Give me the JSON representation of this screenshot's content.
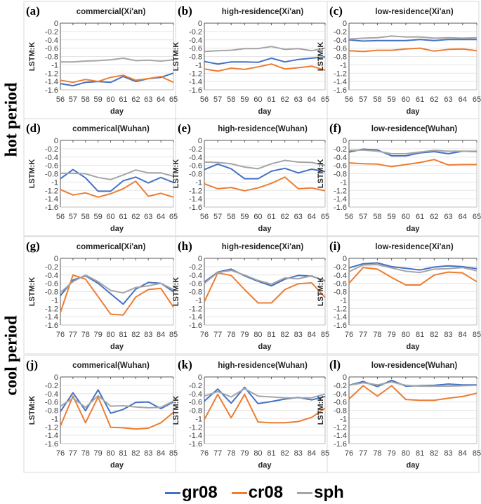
{
  "side_labels": {
    "hot": "hot period",
    "cool": "cool period"
  },
  "legend": [
    {
      "name": "gr08",
      "color": "#4472C4"
    },
    {
      "name": "cr08",
      "color": "#ED7D31"
    },
    {
      "name": "sph",
      "color": "#A5A5A5"
    }
  ],
  "chart_data": [
    {
      "type": "line",
      "panel": "(a)",
      "title": "commercial(Xi'an)",
      "xlabel": "day",
      "ylabel": "LSTM:K",
      "ylim": [
        -1.6,
        0
      ],
      "yticks": [
        "0",
        "-0.2",
        "-0.4",
        "-0.6",
        "-0.8",
        "-1",
        "-1.2",
        "-1.4",
        "-1.6"
      ],
      "x": [
        56,
        57,
        58,
        59,
        60,
        61,
        62,
        63,
        64,
        65
      ],
      "series": [
        {
          "name": "gr08",
          "values": [
            -1.45,
            -1.5,
            -1.42,
            -1.4,
            -1.42,
            -1.28,
            -1.4,
            -1.33,
            -1.3,
            -1.2
          ]
        },
        {
          "name": "cr08",
          "values": [
            -1.37,
            -1.42,
            -1.35,
            -1.4,
            -1.3,
            -1.25,
            -1.37,
            -1.33,
            -1.28,
            -1.42
          ]
        },
        {
          "name": "sph",
          "values": [
            -0.93,
            -0.93,
            -0.91,
            -0.9,
            -0.88,
            -0.84,
            -0.9,
            -0.89,
            -0.91,
            -0.88
          ]
        }
      ]
    },
    {
      "type": "line",
      "panel": "(b)",
      "title": "high-residence(Xi'an)",
      "xlabel": "day",
      "ylabel": "LSTM:K",
      "ylim": [
        -1.6,
        0
      ],
      "yticks": [
        "0",
        "-0.2",
        "-0.4",
        "-0.6",
        "-0.8",
        "-1",
        "-1.2",
        "-1.4",
        "-1.6"
      ],
      "x": [
        56,
        57,
        58,
        59,
        60,
        61,
        62,
        63,
        64,
        65
      ],
      "series": [
        {
          "name": "gr08",
          "values": [
            -0.92,
            -0.98,
            -0.93,
            -0.93,
            -0.94,
            -0.84,
            -0.93,
            -0.87,
            -0.84,
            -0.81
          ]
        },
        {
          "name": "cr08",
          "values": [
            -1.1,
            -1.15,
            -1.08,
            -1.11,
            -1.05,
            -0.98,
            -1.1,
            -1.07,
            -1.03,
            -1.13
          ]
        },
        {
          "name": "sph",
          "values": [
            -0.68,
            -0.66,
            -0.65,
            -0.61,
            -0.61,
            -0.56,
            -0.63,
            -0.61,
            -0.66,
            -0.6
          ]
        }
      ]
    },
    {
      "type": "line",
      "panel": "(c)",
      "title": "low-residence(Xi'an)",
      "xlabel": "day",
      "ylabel": "LSTM:K",
      "ylim": [
        -1.6,
        0
      ],
      "yticks": [
        "0",
        "-0.2",
        "-0.4",
        "-0.6",
        "-0.8",
        "-1",
        "-1.2",
        "-1.4",
        "-1.6"
      ],
      "x": [
        56,
        57,
        58,
        59,
        60,
        61,
        62,
        63,
        64,
        65
      ],
      "series": [
        {
          "name": "gr08",
          "values": [
            -0.4,
            -0.43,
            -0.42,
            -0.42,
            -0.42,
            -0.39,
            -0.42,
            -0.39,
            -0.39,
            -0.39
          ]
        },
        {
          "name": "cr08",
          "values": [
            -0.66,
            -0.68,
            -0.65,
            -0.65,
            -0.62,
            -0.6,
            -0.67,
            -0.63,
            -0.62,
            -0.66
          ]
        },
        {
          "name": "sph",
          "values": [
            -0.38,
            -0.36,
            -0.35,
            -0.31,
            -0.33,
            -0.33,
            -0.36,
            -0.35,
            -0.36,
            -0.35
          ]
        }
      ]
    },
    {
      "type": "line",
      "panel": "(d)",
      "title": "commerical(Wuhan)",
      "xlabel": "day",
      "ylabel": "LSTM:K",
      "ylim": [
        -1.6,
        0
      ],
      "yticks": [
        "0",
        "-0.2",
        "-0.4",
        "-0.6",
        "-0.8",
        "-1",
        "-1.2",
        "-1.4",
        "-1.6"
      ],
      "x": [
        56,
        57,
        58,
        59,
        60,
        61,
        62,
        63,
        64,
        65
      ],
      "series": [
        {
          "name": "gr08",
          "values": [
            -0.92,
            -0.7,
            -0.9,
            -1.22,
            -1.22,
            -0.97,
            -0.88,
            -1.02,
            -0.89,
            -1.01
          ]
        },
        {
          "name": "cr08",
          "values": [
            -1.18,
            -1.31,
            -1.26,
            -1.36,
            -1.28,
            -1.16,
            -0.98,
            -1.34,
            -1.27,
            -1.36
          ]
        },
        {
          "name": "sph",
          "values": [
            -0.79,
            -0.79,
            -0.8,
            -0.89,
            -0.94,
            -0.83,
            -0.71,
            -0.78,
            -0.78,
            -0.86
          ]
        }
      ]
    },
    {
      "type": "line",
      "panel": "(e)",
      "title": "high-residence(Wuhan)",
      "xlabel": "day",
      "ylabel": "LSTM:K",
      "ylim": [
        -1.6,
        0
      ],
      "yticks": [
        "0",
        "-0.2",
        "-0.4",
        "-0.6",
        "-0.8",
        "-1",
        "-1.2",
        "-1.4",
        "-1.6"
      ],
      "x": [
        56,
        57,
        58,
        59,
        60,
        61,
        62,
        63,
        64,
        65
      ],
      "series": [
        {
          "name": "gr08",
          "values": [
            -0.7,
            -0.57,
            -0.68,
            -0.92,
            -0.92,
            -0.74,
            -0.67,
            -0.78,
            -0.69,
            -0.75
          ]
        },
        {
          "name": "cr08",
          "values": [
            -1.04,
            -1.16,
            -1.13,
            -1.21,
            -1.14,
            -1.03,
            -0.88,
            -1.16,
            -1.14,
            -1.21
          ]
        },
        {
          "name": "sph",
          "values": [
            -0.52,
            -0.53,
            -0.56,
            -0.64,
            -0.68,
            -0.56,
            -0.48,
            -0.52,
            -0.53,
            -0.6
          ]
        }
      ]
    },
    {
      "type": "line",
      "panel": "(f)",
      "title": "low-residence(Wuhan)",
      "xlabel": "day",
      "ylabel": "LSTM:K",
      "ylim": [
        -1.6,
        0
      ],
      "yticks": [
        "0",
        "-0.2",
        "-0.4",
        "-0.6",
        "-0.8",
        "-1",
        "-1.2",
        "-1.4",
        "-1.6"
      ],
      "x": [
        56,
        57,
        58,
        59,
        60,
        61,
        62,
        63,
        64,
        65
      ],
      "series": [
        {
          "name": "gr08",
          "values": [
            -0.28,
            -0.21,
            -0.23,
            -0.37,
            -0.37,
            -0.3,
            -0.27,
            -0.32,
            -0.26,
            -0.27
          ]
        },
        {
          "name": "cr08",
          "values": [
            -0.54,
            -0.56,
            -0.57,
            -0.63,
            -0.58,
            -0.53,
            -0.46,
            -0.59,
            -0.58,
            -0.58
          ]
        },
        {
          "name": "sph",
          "values": [
            -0.24,
            -0.23,
            -0.26,
            -0.32,
            -0.32,
            -0.28,
            -0.24,
            -0.26,
            -0.26,
            -0.26
          ]
        }
      ]
    },
    {
      "type": "line",
      "panel": "(g)",
      "title": "commerical(Xi'an)",
      "xlabel": "day",
      "ylabel": "LSTM:K",
      "ylim": [
        -1.6,
        0
      ],
      "yticks": [
        "0",
        "-0.2",
        "-0.4",
        "-0.6",
        "-0.8",
        "-1",
        "-1.2",
        "-1.4",
        "-1.6"
      ],
      "x": [
        76,
        77,
        78,
        79,
        80,
        81,
        82,
        83,
        84,
        85
      ],
      "series": [
        {
          "name": "gr08",
          "values": [
            -0.9,
            -0.52,
            -0.42,
            -0.6,
            -0.85,
            -1.1,
            -0.74,
            -0.58,
            -0.6,
            -0.8
          ]
        },
        {
          "name": "cr08",
          "values": [
            -1.3,
            -0.4,
            -0.5,
            -0.92,
            -1.34,
            -1.36,
            -0.93,
            -0.75,
            -0.72,
            -1.17
          ]
        },
        {
          "name": "sph",
          "values": [
            -0.82,
            -0.56,
            -0.4,
            -0.56,
            -0.77,
            -0.83,
            -0.7,
            -0.66,
            -0.6,
            -0.75
          ]
        }
      ]
    },
    {
      "type": "line",
      "panel": "(h)",
      "title": "high-residence(Xi'an)",
      "xlabel": "day",
      "ylabel": "LSTM:K",
      "ylim": [
        -1.6,
        0
      ],
      "yticks": [
        "0",
        "-0.2",
        "-0.4",
        "-0.6",
        "-0.8",
        "-1",
        "-1.2",
        "-1.4",
        "-1.6"
      ],
      "x": [
        76,
        77,
        78,
        79,
        80,
        81,
        82,
        83,
        84,
        85
      ],
      "series": [
        {
          "name": "gr08",
          "values": [
            -0.57,
            -0.33,
            -0.26,
            -0.42,
            -0.55,
            -0.66,
            -0.5,
            -0.41,
            -0.43,
            -0.54
          ]
        },
        {
          "name": "cr08",
          "values": [
            -1.04,
            -0.35,
            -0.41,
            -0.75,
            -1.07,
            -1.07,
            -0.75,
            -0.61,
            -0.59,
            -0.94
          ]
        },
        {
          "name": "sph",
          "values": [
            -0.6,
            -0.34,
            -0.29,
            -0.4,
            -0.53,
            -0.62,
            -0.47,
            -0.49,
            -0.42,
            -0.55
          ]
        }
      ]
    },
    {
      "type": "line",
      "panel": "(i)",
      "title": "low-residence(Xi'an)",
      "xlabel": "day",
      "ylabel": "LSTM:K",
      "ylim": [
        -1.6,
        0
      ],
      "yticks": [
        "0",
        "-0.2",
        "-0.4",
        "-0.6",
        "-0.8",
        "-1",
        "-1.2",
        "-1.4",
        "-1.6"
      ],
      "x": [
        76,
        77,
        78,
        79,
        80,
        81,
        82,
        83,
        84,
        85
      ],
      "series": [
        {
          "name": "gr08",
          "values": [
            -0.23,
            -0.13,
            -0.11,
            -0.2,
            -0.24,
            -0.28,
            -0.21,
            -0.18,
            -0.2,
            -0.25
          ]
        },
        {
          "name": "cr08",
          "values": [
            -0.6,
            -0.22,
            -0.26,
            -0.46,
            -0.64,
            -0.64,
            -0.4,
            -0.33,
            -0.35,
            -0.56
          ]
        },
        {
          "name": "sph",
          "values": [
            -0.32,
            -0.16,
            -0.15,
            -0.23,
            -0.31,
            -0.34,
            -0.26,
            -0.25,
            -0.22,
            -0.3
          ]
        }
      ]
    },
    {
      "type": "line",
      "panel": "(j)",
      "title": "commerical(Wuhan)",
      "xlabel": "day",
      "ylabel": "LSTM:K",
      "ylim": [
        -1.6,
        0
      ],
      "yticks": [
        "0",
        "-0.2",
        "-0.4",
        "-0.6",
        "-0.8",
        "-1",
        "-1.2",
        "-1.4",
        "-1.6"
      ],
      "x": [
        76,
        77,
        78,
        79,
        80,
        81,
        82,
        83,
        84,
        85
      ],
      "series": [
        {
          "name": "gr08",
          "values": [
            -0.83,
            -0.38,
            -0.81,
            -0.31,
            -0.87,
            -0.78,
            -0.61,
            -0.6,
            -0.76,
            -0.6
          ]
        },
        {
          "name": "cr08",
          "values": [
            -1.18,
            -0.46,
            -1.1,
            -0.48,
            -1.21,
            -1.22,
            -1.25,
            -1.23,
            -1.1,
            -0.85
          ]
        },
        {
          "name": "sph",
          "values": [
            -0.7,
            -0.51,
            -0.73,
            -0.45,
            -0.7,
            -0.69,
            -0.72,
            -0.74,
            -0.73,
            -0.58
          ]
        }
      ]
    },
    {
      "type": "line",
      "panel": "(k)",
      "title": "high-residence(Wuhan)",
      "xlabel": "day",
      "ylabel": "LSTM:K",
      "ylim": [
        -1.6,
        0
      ],
      "yticks": [
        "0",
        "-0.2",
        "-0.4",
        "-0.6",
        "-0.8",
        "-1",
        "-1.2",
        "-1.4",
        "-1.6"
      ],
      "x": [
        76,
        77,
        78,
        79,
        80,
        81,
        82,
        83,
        84,
        85
      ],
      "series": [
        {
          "name": "gr08",
          "values": [
            -0.58,
            -0.29,
            -0.63,
            -0.25,
            -0.64,
            -0.59,
            -0.53,
            -0.49,
            -0.55,
            -0.47
          ]
        },
        {
          "name": "cr08",
          "values": [
            -1.02,
            -0.42,
            -0.98,
            -0.42,
            -1.08,
            -1.1,
            -1.1,
            -1.07,
            -0.97,
            -0.75
          ]
        },
        {
          "name": "sph",
          "values": [
            -0.46,
            -0.35,
            -0.48,
            -0.28,
            -0.46,
            -0.48,
            -0.5,
            -0.5,
            -0.5,
            -0.41
          ]
        }
      ]
    },
    {
      "type": "line",
      "panel": "(l)",
      "title": "low-residence(Wuhan)",
      "xlabel": "day",
      "ylabel": "LSTM:K",
      "ylim": [
        -1.6,
        0
      ],
      "yticks": [
        "0",
        "-0.2",
        "-0.4",
        "-0.6",
        "-0.8",
        "-1",
        "-1.2",
        "-1.4",
        "-1.6"
      ],
      "x": [
        76,
        77,
        78,
        79,
        80,
        81,
        82,
        83,
        84,
        85
      ],
      "series": [
        {
          "name": "gr08",
          "values": [
            -0.2,
            -0.11,
            -0.23,
            -0.08,
            -0.22,
            -0.21,
            -0.2,
            -0.17,
            -0.19,
            -0.19
          ]
        },
        {
          "name": "cr08",
          "values": [
            -0.53,
            -0.21,
            -0.46,
            -0.21,
            -0.54,
            -0.56,
            -0.56,
            -0.51,
            -0.47,
            -0.39
          ]
        },
        {
          "name": "sph",
          "values": [
            -0.2,
            -0.14,
            -0.19,
            -0.12,
            -0.2,
            -0.22,
            -0.22,
            -0.22,
            -0.21,
            -0.2
          ]
        }
      ]
    }
  ]
}
